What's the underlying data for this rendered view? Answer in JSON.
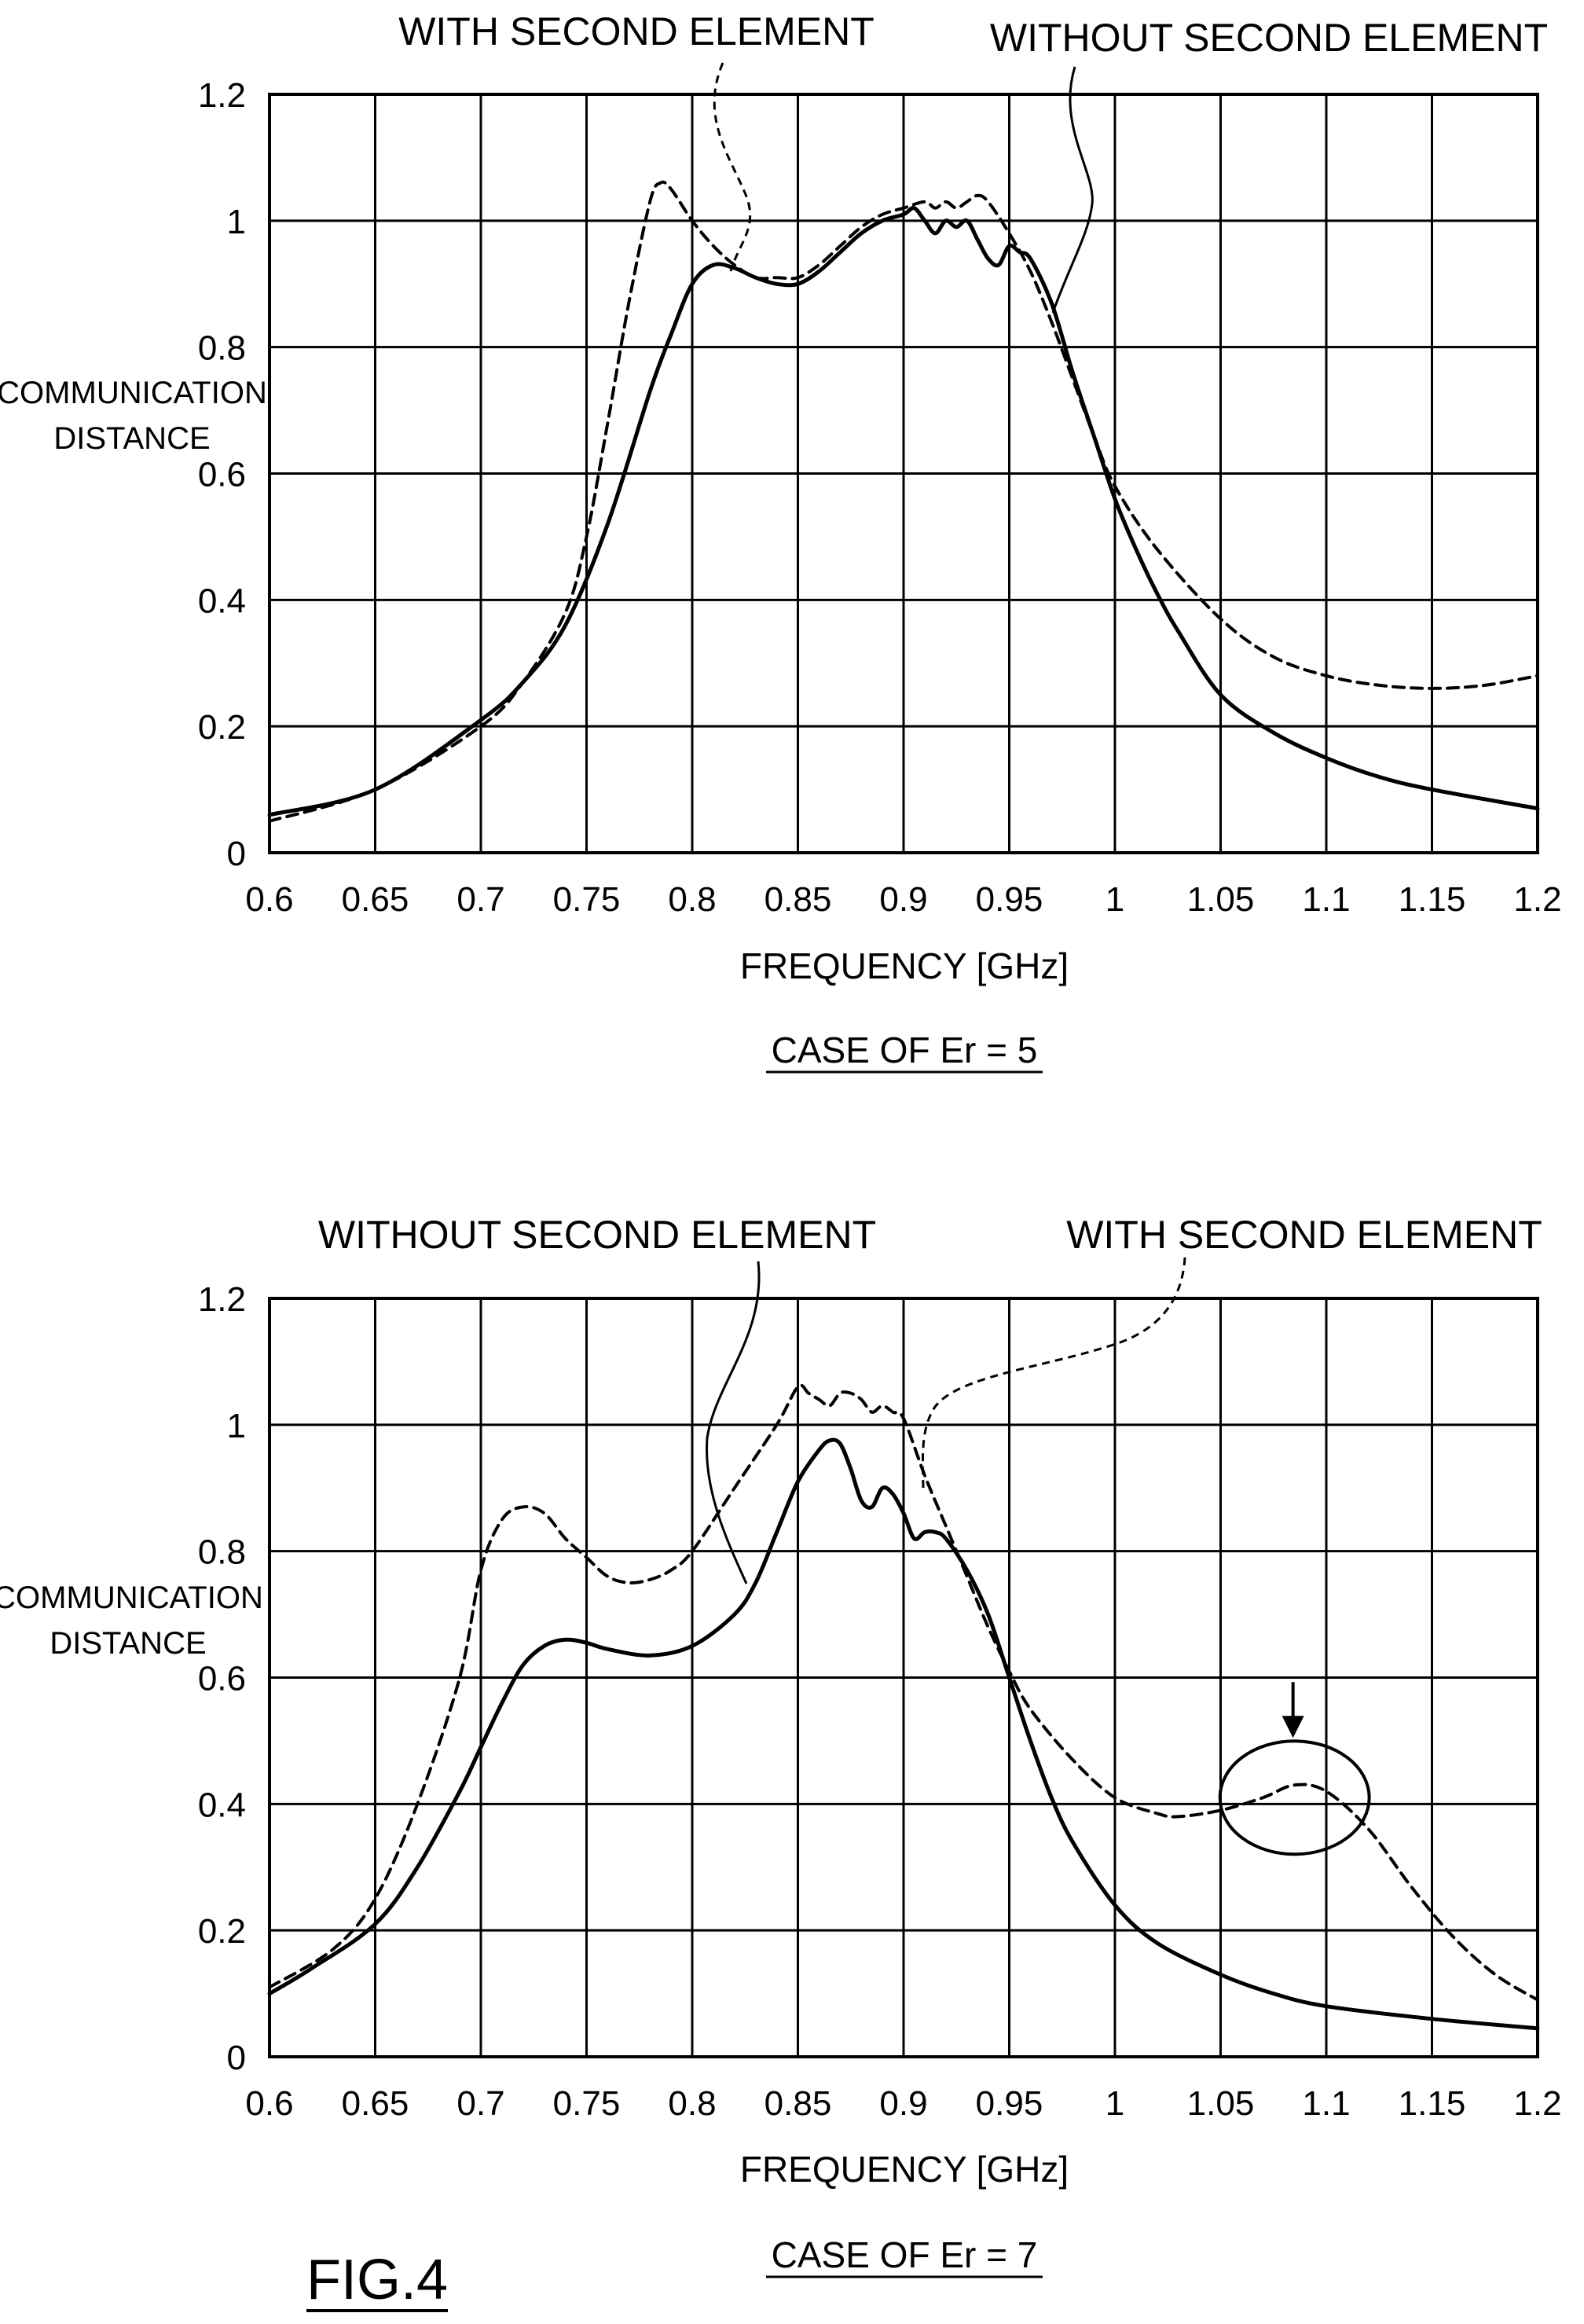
{
  "figure_label": "FIG.4",
  "chart_data": [
    {
      "type": "line",
      "caption": "CASE OF Er = 5",
      "xlabel": "FREQUENCY [GHz]",
      "ylabel_lines": [
        "COMMUNICATION",
        "DISTANCE"
      ],
      "xlim": [
        0.6,
        1.2
      ],
      "ylim": [
        0,
        1.2
      ],
      "xticks": [
        "0.6",
        "0.65",
        "0.7",
        "0.75",
        "0.8",
        "0.85",
        "0.9",
        "0.95",
        "1",
        "1.05",
        "1.1",
        "1.15",
        "1.2"
      ],
      "yticks": [
        "0",
        "0.2",
        "0.4",
        "0.6",
        "0.8",
        "1",
        "1.2"
      ],
      "grid": true,
      "annotations": [
        {
          "text": "WITH SECOND ELEMENT",
          "points_to": "dashed curve"
        },
        {
          "text": "WITHOUT SECOND ELEMENT",
          "points_to": "solid curve"
        }
      ],
      "series": [
        {
          "style": "solid",
          "x": [
            0.6,
            0.65,
            0.7,
            0.72,
            0.74,
            0.76,
            0.78,
            0.79,
            0.8,
            0.81,
            0.82,
            0.83,
            0.84,
            0.85,
            0.86,
            0.87,
            0.88,
            0.89,
            0.9,
            0.905,
            0.91,
            0.915,
            0.92,
            0.925,
            0.93,
            0.935,
            0.94,
            0.945,
            0.95,
            0.955,
            0.96,
            0.97,
            0.98,
            0.99,
            1.0,
            1.01,
            1.02,
            1.03,
            1.05,
            1.075,
            1.1,
            1.125,
            1.15,
            1.2
          ],
          "y": [
            0.06,
            0.1,
            0.21,
            0.27,
            0.36,
            0.52,
            0.73,
            0.82,
            0.9,
            0.93,
            0.925,
            0.91,
            0.9,
            0.9,
            0.92,
            0.95,
            0.98,
            1.0,
            1.01,
            1.02,
            1.0,
            0.98,
            1.0,
            0.99,
            1.0,
            0.97,
            0.94,
            0.93,
            0.96,
            0.95,
            0.94,
            0.87,
            0.76,
            0.66,
            0.56,
            0.48,
            0.41,
            0.35,
            0.25,
            0.19,
            0.15,
            0.12,
            0.1,
            0.07
          ]
        },
        {
          "style": "dashed",
          "x": [
            0.6,
            0.65,
            0.7,
            0.72,
            0.74,
            0.75,
            0.76,
            0.77,
            0.78,
            0.785,
            0.79,
            0.8,
            0.81,
            0.82,
            0.83,
            0.84,
            0.85,
            0.86,
            0.87,
            0.88,
            0.89,
            0.9,
            0.91,
            0.915,
            0.92,
            0.925,
            0.93,
            0.935,
            0.94,
            0.95,
            0.96,
            0.97,
            0.98,
            0.99,
            1.0,
            1.02,
            1.05,
            1.075,
            1.1,
            1.125,
            1.15,
            1.175,
            1.2
          ],
          "y": [
            0.05,
            0.1,
            0.2,
            0.27,
            0.38,
            0.5,
            0.68,
            0.87,
            1.03,
            1.06,
            1.05,
            1.0,
            0.96,
            0.93,
            0.91,
            0.91,
            0.91,
            0.93,
            0.96,
            0.99,
            1.01,
            1.02,
            1.03,
            1.02,
            1.03,
            1.02,
            1.03,
            1.04,
            1.03,
            0.98,
            0.92,
            0.84,
            0.75,
            0.66,
            0.58,
            0.48,
            0.37,
            0.31,
            0.28,
            0.265,
            0.26,
            0.265,
            0.28
          ]
        }
      ]
    },
    {
      "type": "line",
      "caption": "CASE OF Er = 7",
      "xlabel": "FREQUENCY [GHz]",
      "ylabel_lines": [
        "COMMUNICATION",
        "DISTANCE"
      ],
      "xlim": [
        0.6,
        1.2
      ],
      "ylim": [
        0,
        1.2
      ],
      "xticks": [
        "0.6",
        "0.65",
        "0.7",
        "0.75",
        "0.8",
        "0.85",
        "0.9",
        "0.95",
        "1",
        "1.05",
        "1.1",
        "1.15",
        "1.2"
      ],
      "yticks": [
        "0",
        "0.2",
        "0.4",
        "0.6",
        "0.8",
        "1",
        "1.2"
      ],
      "grid": true,
      "annotations": [
        {
          "text": "WITHOUT SECOND ELEMENT",
          "points_to": "solid curve"
        },
        {
          "text": "WITH SECOND ELEMENT",
          "points_to": "dashed curve"
        }
      ],
      "highlight": {
        "shape": "ellipse",
        "center": [
          1.085,
          0.41
        ],
        "marker": "arrow"
      },
      "series": [
        {
          "style": "solid",
          "x": [
            0.6,
            0.62,
            0.65,
            0.67,
            0.69,
            0.7,
            0.71,
            0.72,
            0.73,
            0.74,
            0.75,
            0.76,
            0.78,
            0.8,
            0.82,
            0.83,
            0.84,
            0.85,
            0.86,
            0.865,
            0.87,
            0.875,
            0.88,
            0.885,
            0.89,
            0.895,
            0.9,
            0.905,
            0.91,
            0.915,
            0.92,
            0.93,
            0.94,
            0.95,
            0.96,
            0.97,
            0.98,
            1.0,
            1.02,
            1.05,
            1.075,
            1.1,
            1.15,
            1.2
          ],
          "y": [
            0.1,
            0.14,
            0.21,
            0.3,
            0.42,
            0.49,
            0.56,
            0.62,
            0.65,
            0.66,
            0.655,
            0.645,
            0.635,
            0.65,
            0.7,
            0.75,
            0.83,
            0.91,
            0.96,
            0.975,
            0.97,
            0.93,
            0.88,
            0.87,
            0.9,
            0.89,
            0.86,
            0.82,
            0.83,
            0.83,
            0.82,
            0.77,
            0.7,
            0.6,
            0.5,
            0.41,
            0.34,
            0.24,
            0.18,
            0.13,
            0.1,
            0.08,
            0.06,
            0.045
          ]
        },
        {
          "style": "dashed",
          "x": [
            0.6,
            0.63,
            0.65,
            0.67,
            0.69,
            0.7,
            0.71,
            0.72,
            0.73,
            0.74,
            0.75,
            0.76,
            0.77,
            0.78,
            0.79,
            0.8,
            0.82,
            0.84,
            0.85,
            0.855,
            0.86,
            0.865,
            0.87,
            0.875,
            0.88,
            0.885,
            0.89,
            0.895,
            0.9,
            0.91,
            0.92,
            0.93,
            0.94,
            0.95,
            0.96,
            0.98,
            1.0,
            1.02,
            1.03,
            1.05,
            1.07,
            1.085,
            1.1,
            1.12,
            1.14,
            1.16,
            1.18,
            1.2
          ],
          "y": [
            0.11,
            0.17,
            0.25,
            0.4,
            0.6,
            0.77,
            0.85,
            0.87,
            0.86,
            0.82,
            0.79,
            0.76,
            0.75,
            0.755,
            0.77,
            0.8,
            0.9,
            1.0,
            1.06,
            1.05,
            1.04,
            1.03,
            1.05,
            1.05,
            1.04,
            1.02,
            1.03,
            1.02,
            1.01,
            0.92,
            0.84,
            0.76,
            0.68,
            0.61,
            0.55,
            0.47,
            0.41,
            0.385,
            0.38,
            0.39,
            0.41,
            0.43,
            0.42,
            0.36,
            0.27,
            0.19,
            0.13,
            0.09
          ]
        }
      ]
    }
  ]
}
